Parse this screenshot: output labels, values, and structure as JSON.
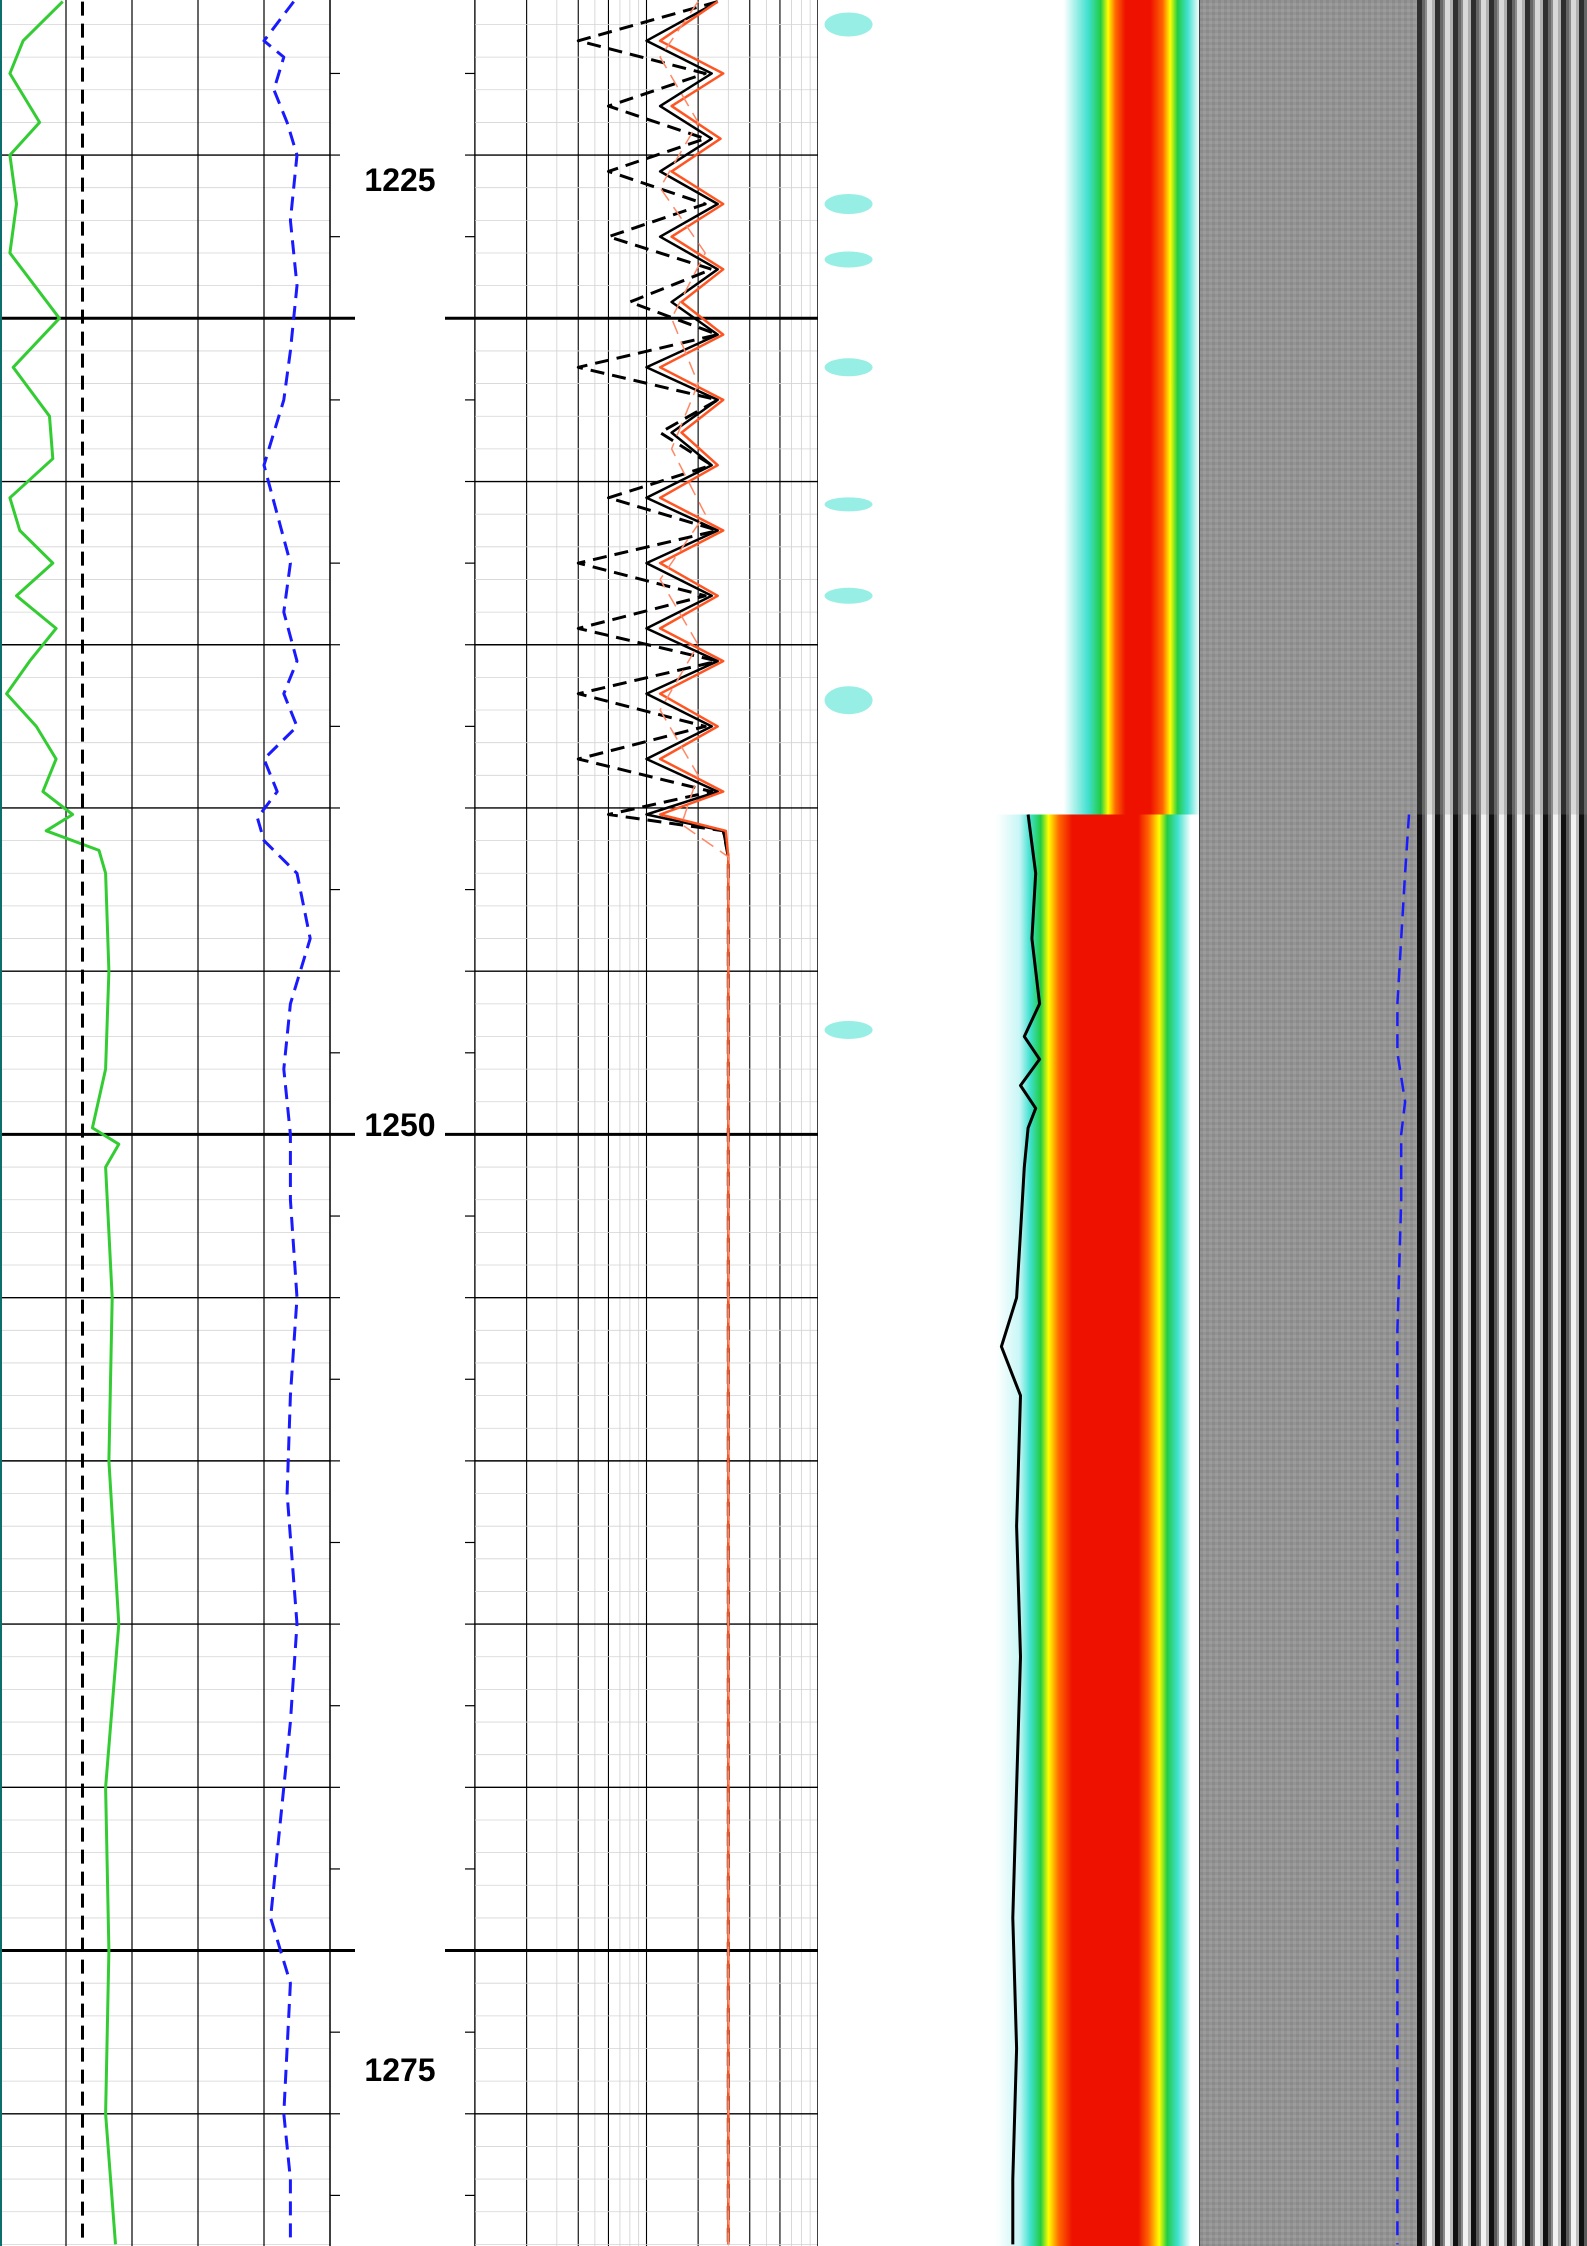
{
  "chart_data": {
    "type": "line",
    "title": "",
    "depth_axis": {
      "range": [
        1215.25,
        1284.05
      ],
      "labeled_ticks": [
        "1225",
        "1250",
        "1275"
      ],
      "major_tick_step": 5,
      "minor_tick_step": 2.5
    },
    "tracks": [
      {
        "name": "track-1",
        "kind": "curves",
        "scale": [
          0,
          100
        ],
        "grid": true,
        "vertical_lines": [
          20,
          40,
          60,
          80
        ],
        "series": [
          {
            "name": "",
            "color": "#33cc33",
            "dash": "solid",
            "depth": [
              1215.3,
              1216.5,
              1217.5,
              1219,
              1220,
              1221.5,
              1223,
              1225,
              1226.5,
              1228,
              1229.3,
              1230.5,
              1231.5,
              1232.5,
              1233.5,
              1234.5,
              1235.5,
              1236.5,
              1237.5,
              1238.5,
              1239.5,
              1240.2,
              1240.7,
              1241.3,
              1242,
              1245,
              1248,
              1249.8,
              1250.3,
              1251,
              1255,
              1260,
              1265,
              1270,
              1275,
              1280,
              1284
            ],
            "values": [
              19,
              7,
              3,
              12,
              3,
              5,
              3,
              18,
              4,
              15,
              16,
              3,
              6,
              16,
              5,
              17,
              9,
              2,
              11,
              17,
              13,
              22,
              14,
              30,
              32,
              33,
              32,
              28,
              36,
              32,
              34,
              33,
              36,
              32,
              33,
              32,
              35
            ]
          },
          {
            "name": "",
            "color": "#000000",
            "dash": "dashed",
            "depth": [
              1215.3,
              1284
            ],
            "values": [
              25,
              25
            ]
          },
          {
            "name": "",
            "color": "#1a1aff",
            "dash": "dashed",
            "depth": [
              1215.3,
              1216.5,
              1217,
              1218,
              1219,
              1220,
              1222,
              1224,
              1226,
              1227.5,
              1229.5,
              1231,
              1232.5,
              1234,
              1235.5,
              1236.5,
              1237.5,
              1238.5,
              1239.5,
              1240.3,
              1241,
              1242,
              1244,
              1246,
              1248,
              1250,
              1252,
              1255,
              1258,
              1261,
              1265,
              1268,
              1270,
              1272,
              1274,
              1276,
              1278,
              1280,
              1282,
              1284
            ],
            "values": [
              89,
              80,
              86,
              83,
              87,
              90,
              88,
              90,
              88,
              86,
              80,
              84,
              88,
              86,
              90,
              86,
              90,
              80,
              84,
              78,
              80,
              90,
              94,
              88,
              86,
              88,
              88,
              90,
              88,
              87,
              90,
              88,
              86,
              84,
              82,
              88,
              87,
              86,
              88,
              88
            ]
          }
        ]
      },
      {
        "name": "track-2",
        "kind": "curves",
        "scale": "log",
        "grid": true,
        "series": [
          {
            "name": "",
            "color": "#000000",
            "dash": "dashed",
            "depth": [
              1215.3,
              1216.5,
              1217.5,
              1218.5,
              1219.5,
              1220.5,
              1221.5,
              1222.5,
              1223.5,
              1224.5,
              1225.5,
              1226.5,
              1227.5,
              1228.5,
              1229.5,
              1230.5,
              1231.5,
              1232.5,
              1233.5,
              1234.5,
              1235.5,
              1236.5,
              1237.5,
              1238.5,
              1239.5,
              1240.2,
              1240.7,
              1241.5,
              1250,
              1284
            ],
            "values": [
              26,
              4,
              22,
              6,
              22,
              6,
              22,
              6,
              24,
              8,
              26,
              4,
              26,
              12,
              24,
              6,
              26,
              4,
              22,
              4,
              26,
              4,
              22,
              4,
              24,
              6,
              28,
              30,
              30,
              30
            ]
          },
          {
            "name": "",
            "color": "#000000",
            "dash": "solid",
            "depth": [
              1215.3,
              1216.5,
              1217.5,
              1218.5,
              1219.5,
              1220.5,
              1221.5,
              1222.5,
              1223.5,
              1224.5,
              1225.5,
              1226.5,
              1227.5,
              1228.5,
              1229.5,
              1230.5,
              1231.5,
              1232.5,
              1233.5,
              1234.5,
              1235.5,
              1236.5,
              1237.5,
              1238.5,
              1239.5,
              1240.2,
              1240.7,
              1241.5,
              1250,
              1284
            ],
            "values": [
              26,
              10,
              24,
              12,
              24,
              12,
              26,
              12,
              26,
              14,
              26,
              10,
              26,
              14,
              24,
              10,
              26,
              10,
              24,
              10,
              26,
              10,
              24,
              10,
              26,
              10,
              28,
              30,
              30,
              30
            ]
          },
          {
            "name": "",
            "color": "#ff5522",
            "dash": "solid",
            "depth": [
              1215.3,
              1216.5,
              1217.5,
              1218.5,
              1219.5,
              1220.5,
              1221.5,
              1222.5,
              1223.5,
              1224.5,
              1225.5,
              1226.5,
              1227.5,
              1228.5,
              1229.5,
              1230.5,
              1231.5,
              1232.5,
              1233.5,
              1234.5,
              1235.5,
              1236.5,
              1237.5,
              1238.5,
              1239.5,
              1240.2,
              1240.7,
              1241.5,
              1250,
              1284
            ],
            "values": [
              26,
              12,
              28,
              14,
              27,
              14,
              28,
              14,
              28,
              16,
              28,
              12,
              28,
              16,
              26,
              12,
              28,
              12,
              26,
              12,
              28,
              12,
              26,
              12,
              28,
              12,
              29,
              30,
              30,
              30
            ]
          },
          {
            "name": "",
            "color": "#ff8866",
            "dash": "dashed",
            "depth": [
              1215.3,
              1217,
              1219,
              1221,
              1223,
              1225,
              1227,
              1229,
              1231,
              1233,
              1235,
              1237,
              1239,
              1240.5,
              1241.5,
              1250,
              1284
            ],
            "values": [
              20,
              12,
              20,
              12,
              22,
              14,
              20,
              14,
              22,
              12,
              20,
              12,
              20,
              16,
              30,
              30,
              30
            ]
          }
        ]
      },
      {
        "name": "track-3",
        "kind": "variable-density-image",
        "color_scale": [
          "#ffffff",
          "#40e0d0",
          "#22cc44",
          "#ffff00",
          "#ff6600",
          "#ee1100"
        ],
        "series": [
          {
            "name": "",
            "color": "#000000",
            "dash": "solid",
            "depth": [
              1240.2,
              1242,
              1244,
              1246,
              1247,
              1247.7,
              1248.5,
              1249.2,
              1249.8,
              1251,
              1253,
              1255,
              1256.5,
              1258,
              1262,
              1266,
              1270,
              1274,
              1278,
              1282,
              1284
            ],
            "values": [
              55,
              57,
              56,
              58,
              54,
              58,
              53,
              57,
              55,
              54,
              53,
              52,
              48,
              53,
              52,
              53,
              52,
              51,
              52,
              51,
              51
            ]
          }
        ]
      },
      {
        "name": "track-4",
        "kind": "waveform-image",
        "series": [
          {
            "name": "",
            "color": "#1a1aff",
            "dash": "dashed",
            "depth": [
              1240.2,
              1242,
              1244,
              1246,
              1247.5,
              1249,
              1250,
              1252,
              1256,
              1260,
              1266,
              1270,
              1276,
              1280,
              1284
            ],
            "values": [
              54,
              53,
              52,
              51,
              51,
              53,
              52,
              52,
              51,
              51,
              51,
              51,
              51,
              51,
              51
            ]
          }
        ]
      }
    ]
  }
}
